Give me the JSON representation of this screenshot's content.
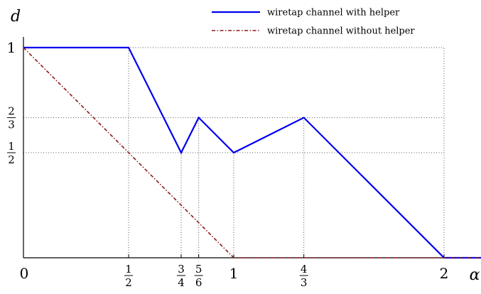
{
  "chart_data": {
    "type": "line",
    "title": "",
    "xlabel": "α",
    "ylabel": "d",
    "xlim": [
      0,
      2.2
    ],
    "ylim": [
      0,
      1
    ],
    "grid": "dotted reference lines at marked points",
    "legend_position": "top-right",
    "x_ticks": [
      {
        "value": 0,
        "text": "0"
      },
      {
        "value": 0.5,
        "num": "1",
        "den": "2"
      },
      {
        "value": 0.75,
        "num": "3",
        "den": "4"
      },
      {
        "value": 0.8333,
        "num": "5",
        "den": "6"
      },
      {
        "value": 1,
        "text": "1"
      },
      {
        "value": 1.3333,
        "num": "4",
        "den": "3"
      },
      {
        "value": 2,
        "text": "2"
      }
    ],
    "y_ticks": [
      {
        "value": 1,
        "text": "1"
      },
      {
        "value": 0.6667,
        "num": "2",
        "den": "3"
      },
      {
        "value": 0.5,
        "num": "1",
        "den": "2"
      }
    ],
    "guides": {
      "horizontal": [
        1,
        0.6667,
        0.5
      ],
      "vertical": [
        0.5,
        0.75,
        0.8333,
        1,
        1.3333,
        2
      ]
    },
    "series": [
      {
        "name": "wiretap channel with helper",
        "color": "#0000ee",
        "style": "solid",
        "x": [
          0,
          0.5,
          0.75,
          0.8333,
          1,
          1.3333,
          2,
          2.2
        ],
        "y": [
          1,
          1,
          0.5,
          0.6667,
          0.5,
          0.6667,
          0,
          0
        ]
      },
      {
        "name": "wiretap channel without helper",
        "color": "#8b1a1a",
        "style": "dash-dot",
        "x": [
          0,
          1,
          2.2
        ],
        "y": [
          1,
          0,
          0
        ]
      }
    ]
  }
}
